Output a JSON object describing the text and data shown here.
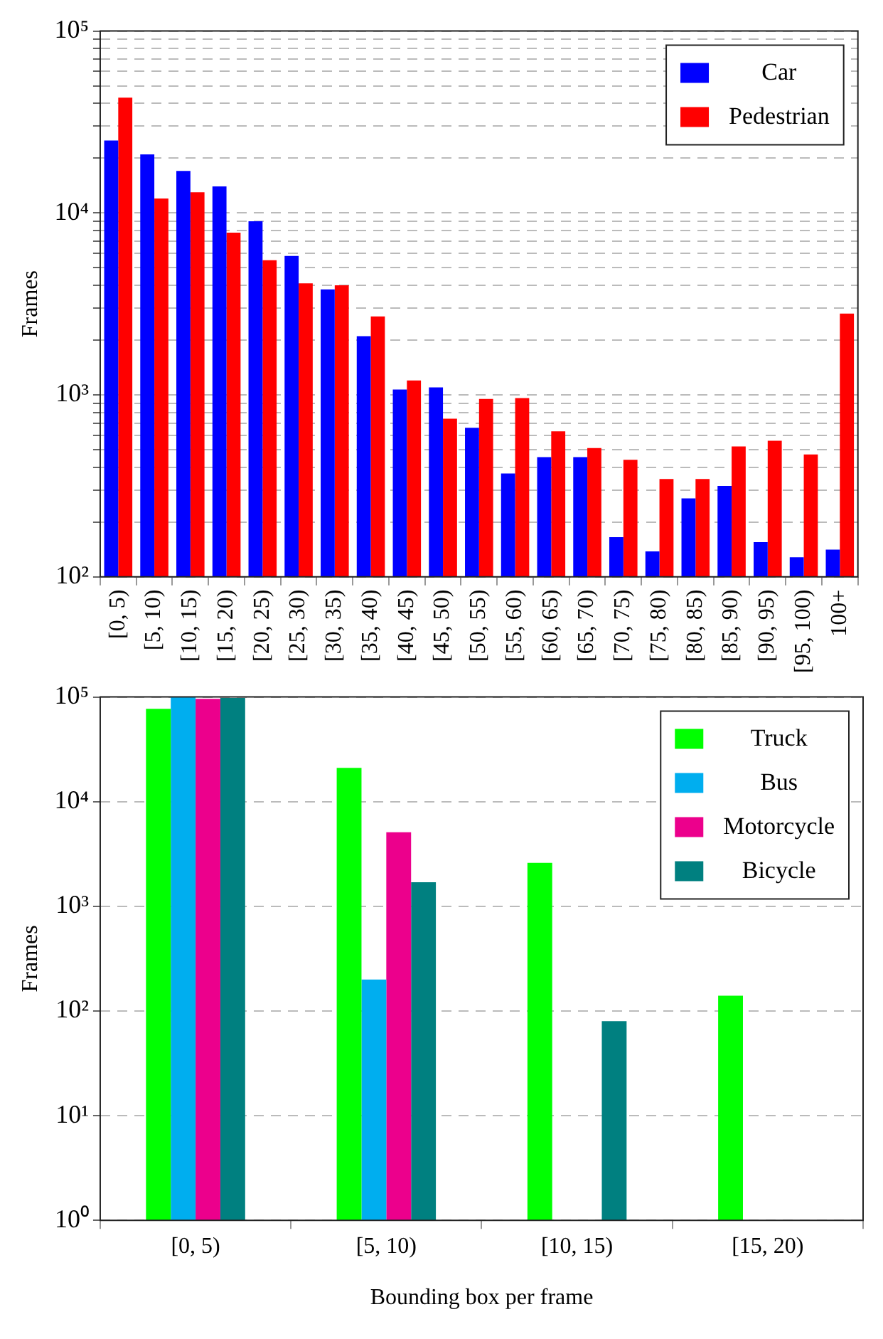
{
  "chart_data": [
    {
      "type": "bar",
      "ylabel": "Frames",
      "log": "y",
      "grid": "y",
      "legend": "top right",
      "categories": [
        "[0, 5)",
        "[5, 10)",
        "[10, 15)",
        "[15, 20)",
        "[20, 25)",
        "[25, 30)",
        "[30, 35)",
        "[35, 40)",
        "[40, 45)",
        "[45, 50)",
        "[50, 55)",
        "[55, 60)",
        "[60, 65)",
        "[65, 70)",
        "[70, 75)",
        "[75, 80)",
        "[80, 85)",
        "[85, 90)",
        "[90, 95)",
        "[95, 100)",
        "100+"
      ],
      "series": [
        {
          "name": "Car",
          "color": "#0000ff",
          "values": [
            25000,
            21000,
            17000,
            14000,
            9000,
            5800,
            3800,
            2100,
            1070,
            1100,
            660,
            370,
            455,
            455,
            165,
            138,
            270,
            316,
            155,
            128,
            141
          ]
        },
        {
          "name": "Pedestrian",
          "color": "#ff0000",
          "values": [
            43000,
            12000,
            13000,
            7800,
            5500,
            4100,
            4000,
            2700,
            1200,
            740,
            950,
            960,
            630,
            510,
            440,
            345,
            345,
            520,
            560,
            470,
            2800
          ]
        }
      ],
      "ylim": [
        100,
        100000
      ],
      "yticks": [
        {
          "value": 100,
          "label": "10²"
        },
        {
          "value": 200,
          "label": null
        },
        {
          "value": 300,
          "label": null
        },
        {
          "value": 400,
          "label": null
        },
        {
          "value": 500,
          "label": null
        },
        {
          "value": 600,
          "label": null
        },
        {
          "value": 700,
          "label": null
        },
        {
          "value": 800,
          "label": null
        },
        {
          "value": 900,
          "label": null
        },
        {
          "value": 1000,
          "label": "10³"
        },
        {
          "value": 2000,
          "label": null
        },
        {
          "value": 3000,
          "label": null
        },
        {
          "value": 4000,
          "label": null
        },
        {
          "value": 5000,
          "label": null
        },
        {
          "value": 6000,
          "label": null
        },
        {
          "value": 7000,
          "label": null
        },
        {
          "value": 8000,
          "label": null
        },
        {
          "value": 9000,
          "label": null
        },
        {
          "value": 10000,
          "label": "10⁴"
        },
        {
          "value": 20000,
          "label": null
        },
        {
          "value": 30000,
          "label": null
        },
        {
          "value": 40000,
          "label": null
        },
        {
          "value": 50000,
          "label": null
        },
        {
          "value": 60000,
          "label": null
        },
        {
          "value": 70000,
          "label": null
        },
        {
          "value": 80000,
          "label": null
        },
        {
          "value": 90000,
          "label": null
        },
        {
          "value": 100000,
          "label": "10⁵"
        }
      ]
    },
    {
      "type": "bar",
      "ylabel": "Frames",
      "xlabel": "Bounding box per frame",
      "log": "y",
      "grid": "y",
      "legend": "top right",
      "categories": [
        "[0, 5)",
        "[5, 10)",
        "[10, 15)",
        "[15, 20)"
      ],
      "series": [
        {
          "name": "Truck",
          "color": "#00ff00",
          "values": [
            77000,
            21000,
            2600,
            140
          ]
        },
        {
          "name": "Bus",
          "color": "#00aeef",
          "values": [
            100000,
            200,
            null,
            null
          ]
        },
        {
          "name": "Motorcycle",
          "color": "#ec008c",
          "values": [
            96000,
            5100,
            null,
            null
          ]
        },
        {
          "name": "Bicycle",
          "color": "#008080",
          "values": [
            98000,
            1700,
            80,
            null
          ]
        }
      ],
      "ylim": [
        1,
        100000
      ],
      "yticks": [
        {
          "value": 1,
          "label": "10⁰"
        },
        {
          "value": 10,
          "label": "10¹"
        },
        {
          "value": 100,
          "label": "10²"
        },
        {
          "value": 1000,
          "label": "10³"
        },
        {
          "value": 10000,
          "label": "10⁴"
        },
        {
          "value": 100000,
          "label": "10⁵"
        }
      ]
    }
  ]
}
